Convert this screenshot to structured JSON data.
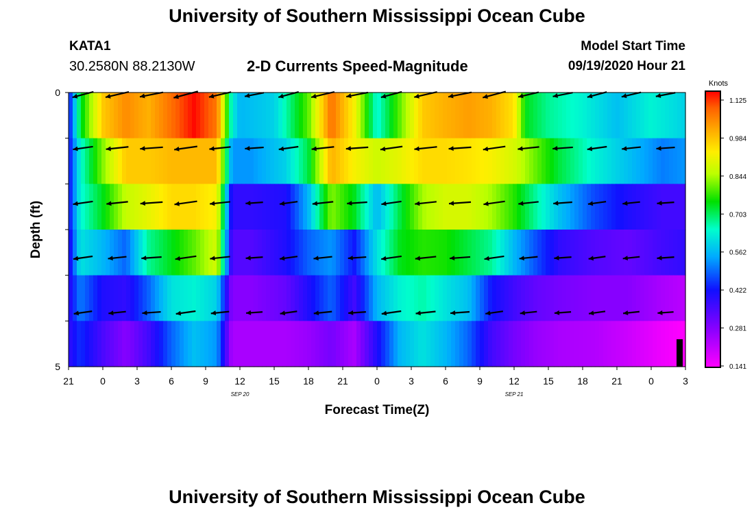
{
  "page": {
    "title": "University of Southern Mississippi Ocean Cube",
    "footer_title": "University of Southern Mississippi Ocean Cube"
  },
  "header": {
    "station": "KATA1",
    "coordinates": "30.2580N 88.2130W",
    "product": "2-D Currents Speed-Magnitude",
    "model_start_label": "Model Start Time",
    "model_start_value": "09/19/2020 Hour 21"
  },
  "colors": {
    "frame": "#000000",
    "arrow": "#000000",
    "background": "#ffffff"
  },
  "chart_data": {
    "type": "heatmap",
    "title": "2-D Currents Speed-Magnitude",
    "xlabel": "Forecast Time(Z)",
    "ylabel": "Depth (ft)",
    "x_tick_labels": [
      "21",
      "0",
      "3",
      "6",
      "9",
      "12",
      "15",
      "18",
      "21",
      "0",
      "3",
      "6",
      "9",
      "12",
      "15",
      "18",
      "21",
      "0",
      "3"
    ],
    "date_labels": [
      {
        "text": "SEP 20",
        "tick_index": 5
      },
      {
        "text": "SEP 21",
        "tick_index": 13
      }
    ],
    "y_tick_labels": [
      "0",
      "5"
    ],
    "y_range": [
      0,
      5
    ],
    "x_range_hours": [
      0,
      54
    ],
    "colorbar": {
      "unit": "Knots",
      "ticks": [
        "1.125",
        "0.984",
        "0.844",
        "0.703",
        "0.562",
        "0.422",
        "0.281",
        "0.141"
      ],
      "min": 0.141,
      "max": 1.125
    },
    "depth_layers": [
      {
        "profile": [
          [
            0,
            0.4
          ],
          [
            1,
            0.7
          ],
          [
            3,
            0.95
          ],
          [
            5,
            1.02
          ],
          [
            7,
            0.98
          ],
          [
            9,
            1.05
          ],
          [
            11,
            1.12
          ],
          [
            13,
            1.04
          ],
          [
            14.3,
            0.62
          ],
          [
            15,
            0.55
          ],
          [
            18,
            0.58
          ],
          [
            21,
            0.78
          ],
          [
            23,
            1.05
          ],
          [
            25,
            0.9
          ],
          [
            27,
            0.62
          ],
          [
            29,
            0.78
          ],
          [
            31,
            0.95
          ],
          [
            33,
            0.98
          ],
          [
            35,
            1.0
          ],
          [
            37,
            0.98
          ],
          [
            39,
            0.92
          ],
          [
            40,
            0.72
          ],
          [
            42,
            0.66
          ],
          [
            45,
            0.62
          ],
          [
            48,
            0.56
          ],
          [
            51,
            0.62
          ],
          [
            54,
            0.58
          ]
        ]
      },
      {
        "profile": [
          [
            0,
            0.4
          ],
          [
            1,
            0.62
          ],
          [
            3,
            0.8
          ],
          [
            5,
            0.95
          ],
          [
            7,
            0.95
          ],
          [
            9,
            0.97
          ],
          [
            11,
            0.97
          ],
          [
            13,
            0.97
          ],
          [
            14.3,
            0.52
          ],
          [
            16,
            0.52
          ],
          [
            19,
            0.58
          ],
          [
            21,
            0.7
          ],
          [
            23,
            0.98
          ],
          [
            25,
            0.9
          ],
          [
            27,
            0.85
          ],
          [
            29,
            0.88
          ],
          [
            31,
            0.93
          ],
          [
            33,
            0.93
          ],
          [
            35,
            0.92
          ],
          [
            37,
            0.9
          ],
          [
            39,
            0.86
          ],
          [
            41,
            0.78
          ],
          [
            43,
            0.7
          ],
          [
            46,
            0.62
          ],
          [
            49,
            0.56
          ],
          [
            52,
            0.5
          ],
          [
            54,
            0.52
          ]
        ]
      },
      {
        "profile": [
          [
            0,
            0.4
          ],
          [
            1,
            0.62
          ],
          [
            3,
            0.72
          ],
          [
            5,
            0.84
          ],
          [
            7,
            0.88
          ],
          [
            9,
            0.93
          ],
          [
            11,
            0.93
          ],
          [
            13,
            0.9
          ],
          [
            14.3,
            0.38
          ],
          [
            16,
            0.38
          ],
          [
            19,
            0.4
          ],
          [
            21,
            0.55
          ],
          [
            23,
            0.8
          ],
          [
            25,
            0.72
          ],
          [
            27,
            0.55
          ],
          [
            29,
            0.7
          ],
          [
            31,
            0.82
          ],
          [
            33,
            0.86
          ],
          [
            35,
            0.86
          ],
          [
            37,
            0.82
          ],
          [
            39,
            0.75
          ],
          [
            41,
            0.65
          ],
          [
            43,
            0.56
          ],
          [
            46,
            0.46
          ],
          [
            49,
            0.4
          ],
          [
            52,
            0.36
          ],
          [
            54,
            0.36
          ]
        ]
      },
      {
        "profile": [
          [
            0,
            0.38
          ],
          [
            1,
            0.6
          ],
          [
            3,
            0.55
          ],
          [
            5,
            0.48
          ],
          [
            7,
            0.66
          ],
          [
            9,
            0.72
          ],
          [
            11,
            0.78
          ],
          [
            13,
            0.86
          ],
          [
            14.3,
            0.34
          ],
          [
            16,
            0.34
          ],
          [
            19,
            0.4
          ],
          [
            21,
            0.48
          ],
          [
            23,
            0.52
          ],
          [
            25,
            0.42
          ],
          [
            27,
            0.6
          ],
          [
            29,
            0.72
          ],
          [
            31,
            0.75
          ],
          [
            33,
            0.74
          ],
          [
            35,
            0.7
          ],
          [
            37,
            0.66
          ],
          [
            39,
            0.55
          ],
          [
            41,
            0.46
          ],
          [
            43,
            0.38
          ],
          [
            46,
            0.34
          ],
          [
            49,
            0.32
          ],
          [
            52,
            0.36
          ],
          [
            54,
            0.38
          ]
        ]
      },
      {
        "profile": [
          [
            0,
            0.38
          ],
          [
            1,
            0.5
          ],
          [
            3,
            0.4
          ],
          [
            5,
            0.38
          ],
          [
            7,
            0.48
          ],
          [
            9,
            0.6
          ],
          [
            11,
            0.62
          ],
          [
            13,
            0.58
          ],
          [
            14.3,
            0.28
          ],
          [
            16,
            0.28
          ],
          [
            19,
            0.32
          ],
          [
            21,
            0.4
          ],
          [
            23,
            0.48
          ],
          [
            25,
            0.36
          ],
          [
            27,
            0.55
          ],
          [
            29,
            0.62
          ],
          [
            31,
            0.65
          ],
          [
            33,
            0.6
          ],
          [
            35,
            0.56
          ],
          [
            37,
            0.42
          ],
          [
            39,
            0.36
          ],
          [
            41,
            0.32
          ],
          [
            43,
            0.3
          ],
          [
            46,
            0.28
          ],
          [
            49,
            0.28
          ],
          [
            52,
            0.24
          ],
          [
            54,
            0.22
          ]
        ]
      },
      {
        "profile": [
          [
            0,
            0.38
          ],
          [
            1,
            0.44
          ],
          [
            3,
            0.35
          ],
          [
            5,
            0.28
          ],
          [
            7,
            0.36
          ],
          [
            9,
            0.48
          ],
          [
            11,
            0.56
          ],
          [
            13,
            0.52
          ],
          [
            14.3,
            0.24
          ],
          [
            16,
            0.24
          ],
          [
            19,
            0.24
          ],
          [
            21,
            0.26
          ],
          [
            23,
            0.3
          ],
          [
            25,
            0.24
          ],
          [
            27,
            0.4
          ],
          [
            29,
            0.55
          ],
          [
            31,
            0.6
          ],
          [
            33,
            0.55
          ],
          [
            35,
            0.48
          ],
          [
            37,
            0.36
          ],
          [
            39,
            0.3
          ],
          [
            41,
            0.26
          ],
          [
            43,
            0.24
          ],
          [
            46,
            0.23
          ],
          [
            49,
            0.2
          ],
          [
            52,
            0.16
          ],
          [
            54,
            0.14
          ]
        ]
      }
    ],
    "vector_times_hours": [
      1.5,
      4.5,
      7.5,
      10.5,
      13.5,
      16.5,
      19.5,
      22.5,
      25.5,
      28.5,
      31.5,
      34.5,
      37.5,
      40.5,
      43.5,
      46.5,
      49.5,
      52.5
    ],
    "vector_direction_note": "arrows point mostly westward (toward left), lengths scale with speed"
  }
}
